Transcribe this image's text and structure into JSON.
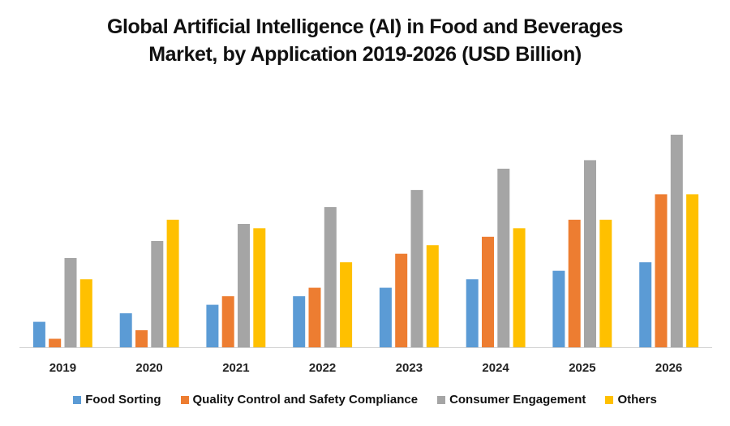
{
  "chart_data": {
    "type": "bar",
    "title": "Global Artificial Intelligence (AI) in Food and Beverages Market, by Application 2019-2026 (USD Billion)",
    "title_lines": [
      "Global Artificial Intelligence (AI) in Food and Beverages",
      "Market, by Application 2019-2026 (USD Billion)"
    ],
    "xlabel": "",
    "ylabel": "",
    "y_axis_visible": false,
    "grid": false,
    "ylim": [
      0,
      25
    ],
    "legend_position": "bottom",
    "categories": [
      "2019",
      "2020",
      "2021",
      "2022",
      "2023",
      "2024",
      "2025",
      "2026"
    ],
    "series": [
      {
        "name": "Food Sorting",
        "color": "#5B9BD5",
        "values": [
          3,
          4,
          5,
          6,
          7,
          8,
          9,
          10
        ]
      },
      {
        "name": "Quality Control and Safety Compliance",
        "color": "#ED7D31",
        "values": [
          1,
          2,
          6,
          7,
          11,
          13,
          15,
          18
        ]
      },
      {
        "name": "Consumer Engagement",
        "color": "#A5A5A5",
        "values": [
          10.5,
          12.5,
          14.5,
          16.5,
          18.5,
          21,
          22,
          25
        ]
      },
      {
        "name": "Others",
        "color": "#FFC000",
        "values": [
          8,
          15,
          14,
          10,
          12,
          14,
          15,
          18
        ]
      }
    ]
  }
}
